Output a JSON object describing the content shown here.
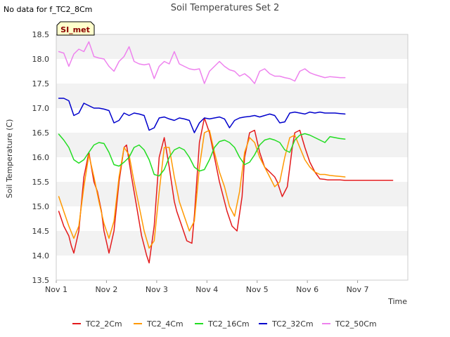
{
  "header": {
    "no_data_note": "No data for f_TC2_8Cm"
  },
  "badge": {
    "label": "SI_met"
  },
  "chart_data": {
    "type": "line",
    "title": "Soil Temperatures Set 2",
    "xlabel": "Time",
    "ylabel": "Soil Temperature (C)",
    "xlim": [
      0,
      7.0
    ],
    "ylim": [
      13.5,
      18.5
    ],
    "x_ticks": [
      {
        "value": 0,
        "label": "Nov 1"
      },
      {
        "value": 1,
        "label": "Nov 2"
      },
      {
        "value": 2,
        "label": "Nov 3"
      },
      {
        "value": 3,
        "label": "Nov 4"
      },
      {
        "value": 4,
        "label": "Nov 5"
      },
      {
        "value": 5,
        "label": "Nov 6"
      },
      {
        "value": 6,
        "label": "Nov 7"
      }
    ],
    "y_ticks": [
      {
        "value": 13.5,
        "label": "13.5"
      },
      {
        "value": 14.0,
        "label": "14.0"
      },
      {
        "value": 14.5,
        "label": "14.5"
      },
      {
        "value": 15.0,
        "label": "15.0"
      },
      {
        "value": 15.5,
        "label": "15.5"
      },
      {
        "value": 16.0,
        "label": "16.0"
      },
      {
        "value": 16.5,
        "label": "16.5"
      },
      {
        "value": 17.0,
        "label": "17.0"
      },
      {
        "value": 17.5,
        "label": "17.5"
      },
      {
        "value": 18.0,
        "label": "18.0"
      },
      {
        "value": 18.5,
        "label": "18.5"
      }
    ],
    "grid": "horizontal bands",
    "legend_position": "bottom",
    "series": [
      {
        "name": "TC2_2Cm",
        "color": "#e31a1c",
        "x": [
          0.05,
          0.15,
          0.25,
          0.3,
          0.35,
          0.45,
          0.55,
          0.65,
          0.75,
          0.82,
          0.9,
          0.95,
          1.05,
          1.15,
          1.25,
          1.35,
          1.4,
          1.5,
          1.6,
          1.7,
          1.8,
          1.85,
          1.95,
          2.05,
          2.15,
          2.25,
          2.35,
          2.4,
          2.5,
          2.6,
          2.7,
          2.75,
          2.85,
          2.95,
          3.05,
          3.15,
          3.25,
          3.35,
          3.4,
          3.5,
          3.6,
          3.7,
          3.75,
          3.85,
          3.95,
          4.05,
          4.15,
          4.25,
          4.35,
          4.4,
          4.5,
          4.6,
          4.7,
          4.75,
          4.85,
          4.95,
          5.05,
          5.15,
          5.25,
          5.35,
          5.4,
          5.5,
          5.6,
          5.65,
          5.75,
          5.85,
          5.95,
          6.1,
          6.25,
          6.4,
          6.5,
          6.6,
          6.7
        ],
        "y": [
          14.9,
          14.6,
          14.4,
          14.2,
          14.05,
          14.5,
          15.6,
          16.1,
          15.5,
          15.3,
          14.9,
          14.5,
          14.05,
          14.5,
          15.5,
          16.2,
          16.25,
          15.6,
          15.0,
          14.4,
          14.0,
          13.85,
          14.6,
          16.0,
          16.4,
          15.8,
          15.1,
          14.9,
          14.6,
          14.3,
          14.25,
          14.8,
          16.3,
          16.8,
          16.5,
          16.0,
          15.5,
          15.1,
          14.9,
          14.6,
          14.5,
          15.2,
          16.0,
          16.5,
          16.55,
          16.1,
          15.8,
          15.7,
          15.6,
          15.5,
          15.2,
          15.4,
          16.2,
          16.5,
          16.55,
          16.2,
          15.9,
          15.7,
          15.56,
          15.55,
          15.54,
          15.54,
          15.54,
          15.54,
          15.53,
          15.53,
          15.53,
          15.53,
          15.53,
          15.53,
          15.53,
          15.53,
          15.53
        ]
      },
      {
        "name": "TC2_4Cm",
        "color": "#ff9900",
        "x": [
          0.05,
          0.15,
          0.25,
          0.35,
          0.45,
          0.55,
          0.65,
          0.75,
          0.85,
          0.95,
          1.05,
          1.15,
          1.25,
          1.35,
          1.45,
          1.55,
          1.65,
          1.75,
          1.85,
          1.95,
          2.05,
          2.15,
          2.25,
          2.35,
          2.45,
          2.55,
          2.65,
          2.75,
          2.85,
          2.95,
          3.05,
          3.15,
          3.25,
          3.35,
          3.45,
          3.55,
          3.65,
          3.75,
          3.85,
          3.95,
          4.05,
          4.15,
          4.25,
          4.35,
          4.45,
          4.55,
          4.65,
          4.75,
          4.85,
          4.95,
          5.05,
          5.15,
          5.25,
          5.35,
          5.45,
          5.55,
          5.65,
          5.75
        ],
        "y": [
          15.2,
          14.9,
          14.6,
          14.35,
          14.6,
          15.4,
          16.05,
          15.6,
          15.1,
          14.65,
          14.35,
          14.7,
          15.6,
          16.2,
          16.05,
          15.5,
          15.0,
          14.5,
          14.15,
          14.3,
          15.3,
          16.2,
          16.2,
          15.6,
          15.1,
          14.8,
          14.5,
          14.7,
          15.8,
          16.5,
          16.55,
          16.1,
          15.7,
          15.4,
          15.0,
          14.8,
          15.3,
          16.1,
          16.4,
          16.3,
          16.0,
          15.8,
          15.6,
          15.4,
          15.5,
          16.0,
          16.4,
          16.45,
          16.2,
          15.95,
          15.8,
          15.7,
          15.65,
          15.65,
          15.63,
          15.62,
          15.61,
          15.6
        ]
      },
      {
        "name": "TC2_16Cm",
        "color": "#22dd22",
        "x": [
          0.05,
          0.15,
          0.25,
          0.35,
          0.45,
          0.55,
          0.65,
          0.75,
          0.85,
          0.95,
          1.05,
          1.15,
          1.25,
          1.35,
          1.45,
          1.55,
          1.65,
          1.75,
          1.85,
          1.95,
          2.05,
          2.15,
          2.25,
          2.35,
          2.45,
          2.55,
          2.65,
          2.75,
          2.85,
          2.95,
          3.05,
          3.15,
          3.25,
          3.35,
          3.45,
          3.55,
          3.65,
          3.75,
          3.85,
          3.95,
          4.05,
          4.15,
          4.25,
          4.35,
          4.45,
          4.55,
          4.65,
          4.75,
          4.85,
          4.95,
          5.05,
          5.15,
          5.25,
          5.35,
          5.45,
          5.55,
          5.65,
          5.75
        ],
        "y": [
          16.47,
          16.35,
          16.2,
          15.95,
          15.88,
          15.95,
          16.1,
          16.25,
          16.3,
          16.28,
          16.1,
          15.85,
          15.82,
          15.9,
          16.0,
          16.2,
          16.25,
          16.15,
          15.95,
          15.65,
          15.62,
          15.75,
          16.0,
          16.15,
          16.2,
          16.15,
          16.0,
          15.8,
          15.72,
          15.75,
          15.95,
          16.2,
          16.32,
          16.35,
          16.3,
          16.2,
          16.0,
          15.85,
          15.9,
          16.05,
          16.25,
          16.35,
          16.38,
          16.35,
          16.3,
          16.15,
          16.1,
          16.35,
          16.45,
          16.48,
          16.45,
          16.4,
          16.35,
          16.3,
          16.42,
          16.4,
          16.38,
          16.37
        ]
      },
      {
        "name": "TC2_32Cm",
        "color": "#0000cc",
        "x": [
          0.05,
          0.15,
          0.25,
          0.35,
          0.45,
          0.55,
          0.65,
          0.75,
          0.85,
          0.95,
          1.05,
          1.15,
          1.25,
          1.35,
          1.45,
          1.55,
          1.65,
          1.75,
          1.85,
          1.95,
          2.05,
          2.15,
          2.25,
          2.35,
          2.45,
          2.55,
          2.65,
          2.75,
          2.85,
          2.95,
          3.05,
          3.15,
          3.25,
          3.35,
          3.45,
          3.55,
          3.65,
          3.75,
          3.85,
          3.95,
          4.05,
          4.15,
          4.25,
          4.35,
          4.45,
          4.55,
          4.65,
          4.75,
          4.85,
          4.95,
          5.05,
          5.15,
          5.25,
          5.35,
          5.45,
          5.55,
          5.65,
          5.75
        ],
        "y": [
          17.2,
          17.2,
          17.15,
          16.85,
          16.9,
          17.1,
          17.05,
          17.0,
          17.0,
          16.98,
          16.95,
          16.7,
          16.75,
          16.9,
          16.85,
          16.9,
          16.88,
          16.85,
          16.55,
          16.6,
          16.8,
          16.82,
          16.78,
          16.75,
          16.8,
          16.78,
          16.75,
          16.5,
          16.7,
          16.8,
          16.78,
          16.8,
          16.82,
          16.78,
          16.6,
          16.75,
          16.8,
          16.82,
          16.83,
          16.85,
          16.82,
          16.85,
          16.88,
          16.85,
          16.7,
          16.72,
          16.9,
          16.92,
          16.9,
          16.88,
          16.92,
          16.9,
          16.92,
          16.9,
          16.9,
          16.9,
          16.89,
          16.88
        ]
      },
      {
        "name": "TC2_50Cm",
        "color": "#ee82ee",
        "x": [
          0.05,
          0.15,
          0.25,
          0.35,
          0.45,
          0.55,
          0.65,
          0.75,
          0.85,
          0.95,
          1.05,
          1.15,
          1.25,
          1.35,
          1.45,
          1.55,
          1.65,
          1.75,
          1.85,
          1.95,
          2.05,
          2.15,
          2.25,
          2.35,
          2.45,
          2.55,
          2.65,
          2.75,
          2.85,
          2.95,
          3.05,
          3.15,
          3.25,
          3.35,
          3.45,
          3.55,
          3.65,
          3.75,
          3.85,
          3.95,
          4.05,
          4.15,
          4.25,
          4.35,
          4.45,
          4.55,
          4.65,
          4.75,
          4.85,
          4.95,
          5.05,
          5.15,
          5.25,
          5.35,
          5.45,
          5.55,
          5.65,
          5.75
        ],
        "y": [
          18.15,
          18.12,
          17.85,
          18.1,
          18.2,
          18.15,
          18.35,
          18.05,
          18.02,
          18.0,
          17.85,
          17.75,
          17.95,
          18.05,
          18.25,
          17.95,
          17.9,
          17.88,
          17.9,
          17.6,
          17.85,
          17.95,
          17.9,
          18.15,
          17.9,
          17.85,
          17.8,
          17.78,
          17.8,
          17.5,
          17.75,
          17.85,
          17.95,
          17.85,
          17.78,
          17.75,
          17.65,
          17.7,
          17.62,
          17.5,
          17.75,
          17.8,
          17.7,
          17.65,
          17.65,
          17.62,
          17.6,
          17.55,
          17.75,
          17.8,
          17.72,
          17.68,
          17.65,
          17.62,
          17.64,
          17.63,
          17.62,
          17.62
        ]
      }
    ]
  }
}
